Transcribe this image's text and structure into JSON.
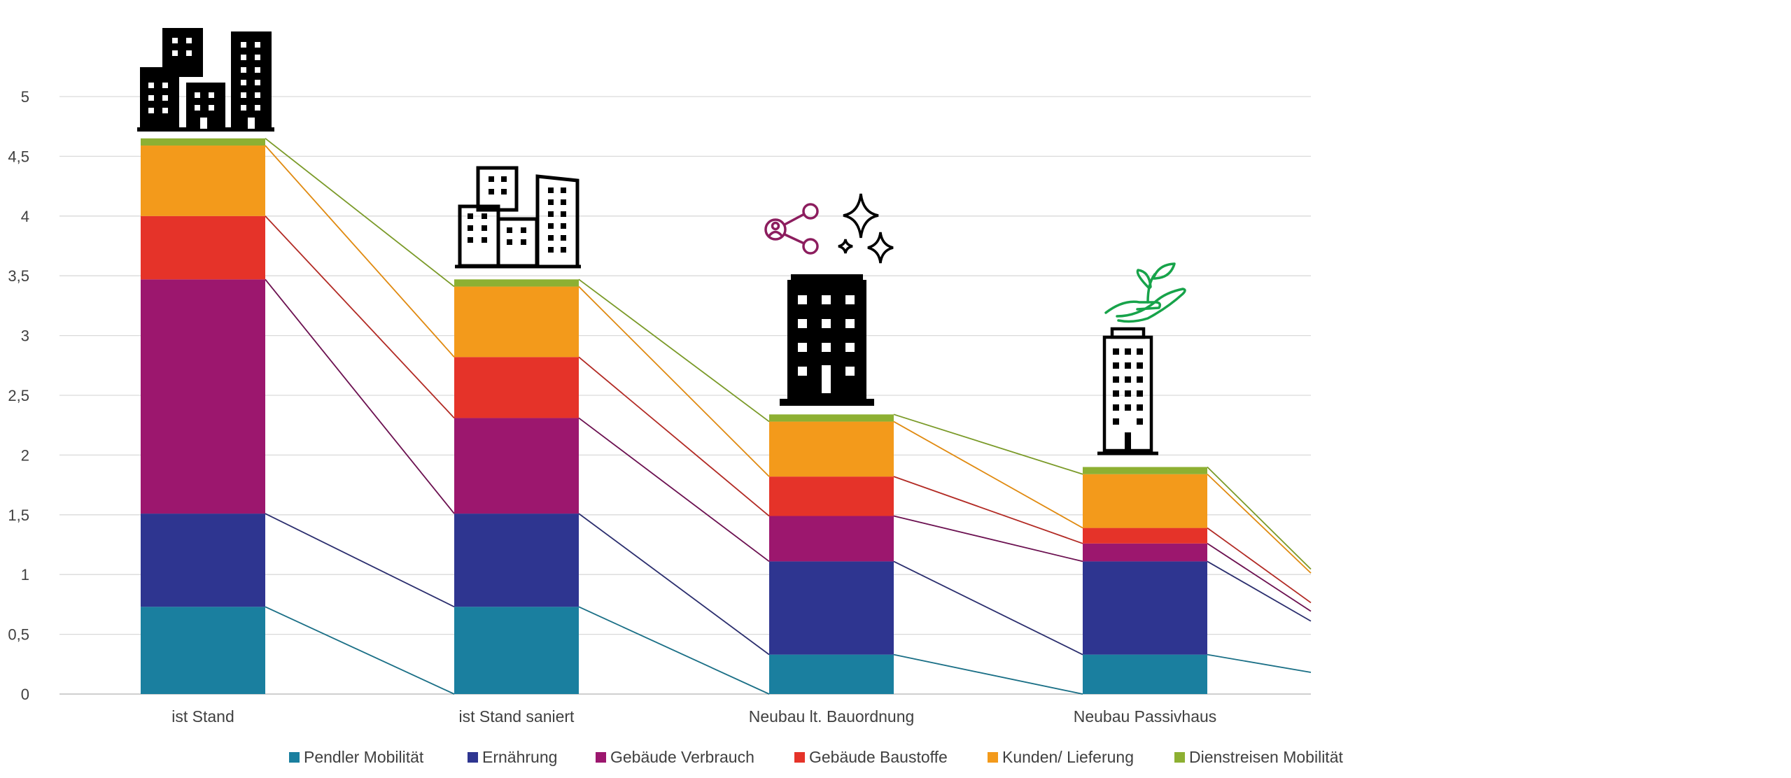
{
  "chart_data": {
    "type": "bar",
    "stacked": true,
    "title": "",
    "xlabel": "",
    "ylabel": "",
    "ylim": [
      0,
      5.5
    ],
    "yticks": [
      0,
      0.5,
      1,
      1.5,
      2,
      2.5,
      3,
      3.5,
      4,
      4.5,
      5
    ],
    "ytick_labels": [
      "0",
      "0,5",
      "1",
      "1,5",
      "2",
      "2,5",
      "3",
      "3,5",
      "4",
      "4,5",
      "5"
    ],
    "grid": true,
    "legend": "bottom",
    "categories": [
      "ist Stand",
      "ist Stand saniert",
      "Neubau lt. Bauordnung",
      "Neubau Passivhaus"
    ],
    "series": [
      {
        "name": "Pendler Mobilität",
        "color": "#1a7f9f",
        "values": [
          0.73,
          0.73,
          0.33,
          0.33
        ]
      },
      {
        "name": "Ernährung",
        "color": "#2e3590",
        "values": [
          0.78,
          0.78,
          0.78,
          0.78
        ]
      },
      {
        "name": "Gebäude Verbrauch",
        "color": "#9c176e",
        "values": [
          1.96,
          0.8,
          0.38,
          0.15
        ]
      },
      {
        "name": "Gebäude Baustoffe",
        "color": "#e53329",
        "values": [
          0.53,
          0.51,
          0.33,
          0.13
        ]
      },
      {
        "name": "Kunden/ Lieferung",
        "color": "#f39a1b",
        "values": [
          0.59,
          0.59,
          0.46,
          0.45
        ]
      },
      {
        "name": "Dienstreisen Mobilität",
        "color": "#8db032",
        "values": [
          0.06,
          0.06,
          0.06,
          0.06
        ]
      }
    ],
    "category_icons": [
      "city-buildings-icon",
      "city-buildings-outline-icon",
      "smart-building-icon",
      "passive-house-icon"
    ],
    "icon_colors": {
      "smart": "#8c1d5e",
      "eco": "#17a34a"
    }
  }
}
